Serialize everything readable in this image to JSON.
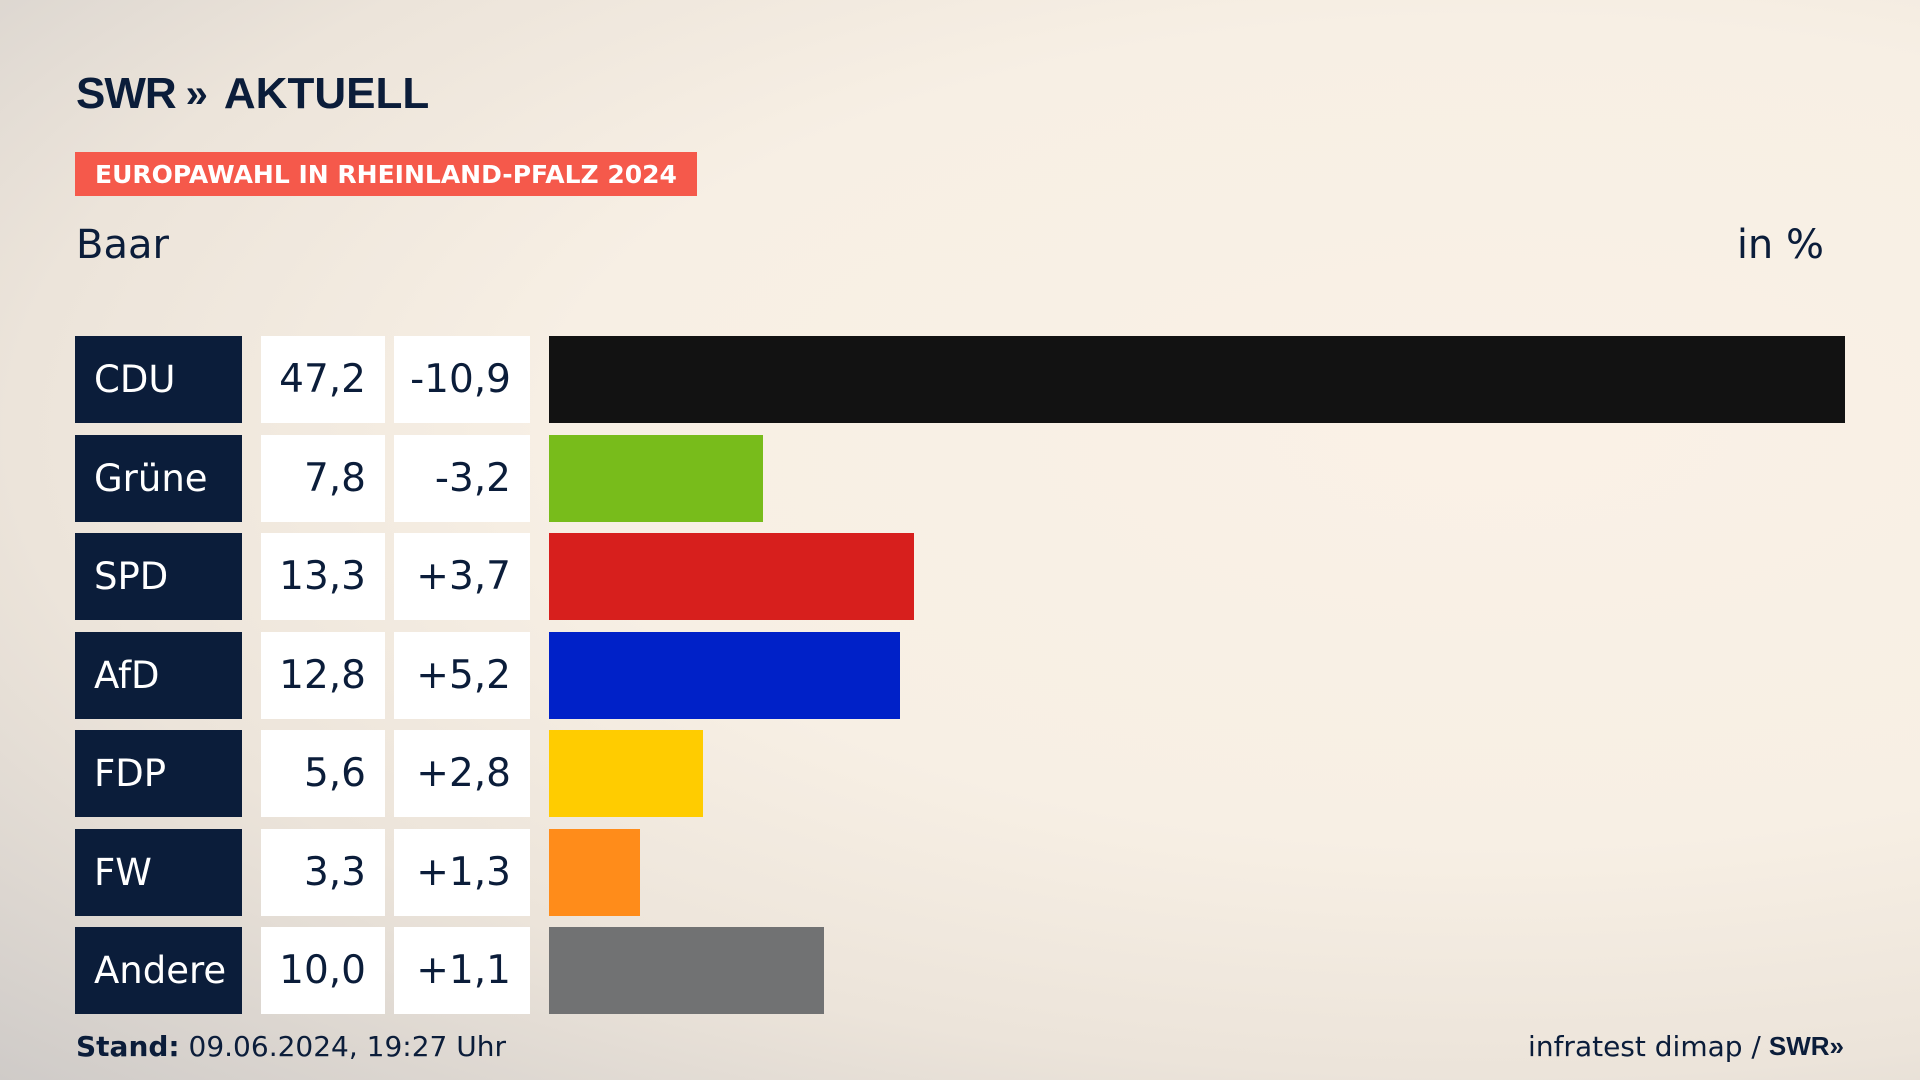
{
  "header": {
    "logo_swr": "SWR",
    "logo_chevrons": "»",
    "logo_aktuell": "AKTUELL",
    "tag": "EUROPAWAHL IN RHEINLAND-PFALZ 2024",
    "location": "Baar",
    "unit": "in %"
  },
  "chart_data": {
    "type": "bar",
    "orientation": "horizontal",
    "categories": [
      "CDU",
      "Grüne",
      "SPD",
      "AfD",
      "FDP",
      "FW",
      "Andere"
    ],
    "values": [
      47.2,
      7.8,
      13.3,
      12.8,
      5.6,
      3.3,
      10.0
    ],
    "value_labels": [
      "47,2",
      "7,8",
      "13,3",
      "12,8",
      "5,6",
      "3,3",
      "10,0"
    ],
    "changes": [
      -10.9,
      -3.2,
      3.7,
      5.2,
      2.8,
      1.3,
      1.1
    ],
    "change_labels": [
      "-10,9",
      "-3,2",
      "+3,7",
      "+5,2",
      "+2,8",
      "+1,3",
      "+1,1"
    ],
    "colors": [
      "#121212",
      "#78bc1b",
      "#d71f1d",
      "#0021c8",
      "#ffcc00",
      "#ff8c1a",
      "#717273"
    ],
    "xlim": [
      0,
      47.2
    ],
    "ylabel": "",
    "xlabel": "",
    "grid": false
  },
  "footer": {
    "stand_label": "Stand:",
    "stand_value": "09.06.2024, 19:27 Uhr",
    "source": "infratest dimap /",
    "source_logo": "SWR»"
  }
}
